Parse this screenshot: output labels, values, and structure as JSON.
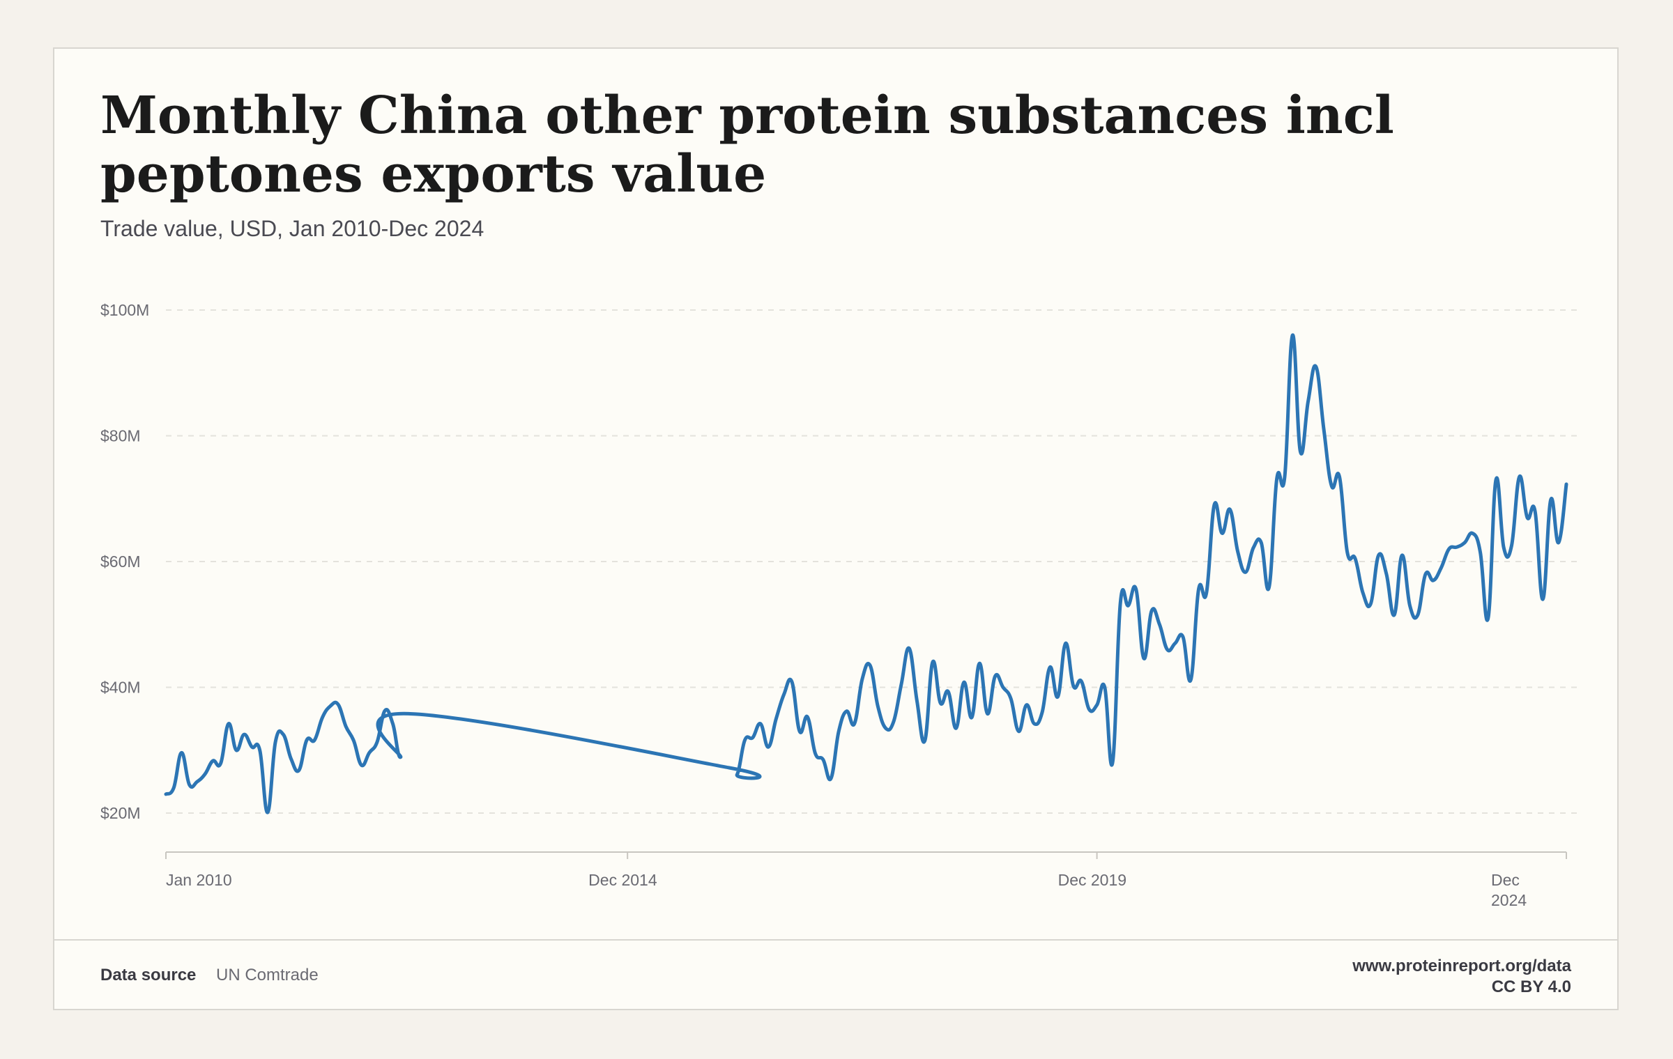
{
  "title": "Monthly China other protein substances incl peptones exports value",
  "subtitle": "Trade value, USD, Jan 2010-Dec 2024",
  "footer": {
    "source_label": "Data source",
    "source_value": "UN Comtrade",
    "url": "www.proteinreport.org/data",
    "license": "CC BY 4.0"
  },
  "colors": {
    "line": "#2c75b4",
    "grid": "#e4e2dc",
    "axis": "#c8c6c0"
  },
  "chart_data": {
    "type": "line",
    "title": "Monthly China other protein substances incl peptones exports value",
    "subtitle": "Trade value, USD, Jan 2010-Dec 2024",
    "xlabel": "",
    "ylabel": "",
    "units": "USD millions",
    "y_ticks": [
      {
        "value": 20,
        "label": "$20M"
      },
      {
        "value": 40,
        "label": "$40M"
      },
      {
        "value": 60,
        "label": "$60M"
      },
      {
        "value": 80,
        "label": "$80M"
      },
      {
        "value": 100,
        "label": "$100M"
      }
    ],
    "ylim": [
      14,
      100
    ],
    "x_ticks": [
      {
        "date": "2010-01",
        "label": "Jan 2010"
      },
      {
        "date": "2014-12",
        "label": "Dec 2014"
      },
      {
        "date": "2019-12",
        "label": "Dec 2019"
      },
      {
        "date": "2024-12",
        "label": "Dec 2024"
      }
    ],
    "xlim": [
      "2010-01",
      "2024-12"
    ],
    "grid": true,
    "legend": "none",
    "series": [
      {
        "points": [
          [
            "2010-01",
            23.0
          ],
          [
            "2010-02",
            24.0
          ],
          [
            "2010-03",
            29.6
          ],
          [
            "2010-04",
            24.5
          ],
          [
            "2010-05",
            25.0
          ],
          [
            "2010-06",
            26.2
          ],
          [
            "2010-07",
            28.3
          ],
          [
            "2010-08",
            27.9
          ],
          [
            "2010-09",
            34.2
          ],
          [
            "2010-10",
            30.0
          ],
          [
            "2010-11",
            32.5
          ],
          [
            "2010-12",
            30.5
          ],
          [
            "2011-01",
            30.0
          ],
          [
            "2011-02",
            20.1
          ],
          [
            "2011-03",
            31.3
          ],
          [
            "2011-04",
            32.5
          ],
          [
            "2011-05",
            28.6
          ],
          [
            "2011-06",
            26.8
          ],
          [
            "2011-07",
            31.6
          ],
          [
            "2011-08",
            31.6
          ],
          [
            "2011-09",
            35.2
          ],
          [
            "2011-10",
            37.0
          ],
          [
            "2011-11",
            37.3
          ],
          [
            "2011-12",
            33.8
          ],
          [
            "2012-01",
            31.5
          ],
          [
            "2012-02",
            27.6
          ],
          [
            "2012-03",
            29.6
          ],
          [
            "2012-04",
            31.3
          ],
          [
            "2012-05",
            36.3
          ],
          [
            "2012-06",
            34.2
          ],
          [
            "2012-07",
            28.9
          ],
          [
            "2012-08",
            35.8
          ],
          [
            "2016-01",
            27.2
          ],
          [
            "2016-02",
            26.1
          ],
          [
            "2016-03",
            31.6
          ],
          [
            "2016-04",
            32.0
          ],
          [
            "2016-05",
            34.2
          ],
          [
            "2016-06",
            30.5
          ],
          [
            "2016-07",
            35.0
          ],
          [
            "2016-08",
            38.9
          ],
          [
            "2016-09",
            40.9
          ],
          [
            "2016-10",
            33.0
          ],
          [
            "2016-11",
            35.3
          ],
          [
            "2016-12",
            29.5
          ],
          [
            "2017-01",
            28.5
          ],
          [
            "2017-02",
            25.5
          ],
          [
            "2017-03",
            33.0
          ],
          [
            "2017-04",
            36.2
          ],
          [
            "2017-05",
            34.2
          ],
          [
            "2017-06",
            41.3
          ],
          [
            "2017-07",
            43.5
          ],
          [
            "2017-08",
            37.0
          ],
          [
            "2017-09",
            33.5
          ],
          [
            "2017-10",
            34.5
          ],
          [
            "2017-11",
            40.5
          ],
          [
            "2017-12",
            46.2
          ],
          [
            "2018-01",
            37.8
          ],
          [
            "2018-02",
            31.5
          ],
          [
            "2018-03",
            44.0
          ],
          [
            "2018-04",
            37.5
          ],
          [
            "2018-05",
            39.3
          ],
          [
            "2018-06",
            33.5
          ],
          [
            "2018-07",
            40.8
          ],
          [
            "2018-08",
            35.2
          ],
          [
            "2018-09",
            43.8
          ],
          [
            "2018-10",
            35.8
          ],
          [
            "2018-11",
            41.8
          ],
          [
            "2018-12",
            40.0
          ],
          [
            "2019-01",
            38.2
          ],
          [
            "2019-02",
            33.0
          ],
          [
            "2019-03",
            37.2
          ],
          [
            "2019-04",
            34.2
          ],
          [
            "2019-05",
            36.0
          ],
          [
            "2019-06",
            43.2
          ],
          [
            "2019-07",
            38.5
          ],
          [
            "2019-08",
            47.0
          ],
          [
            "2019-09",
            40.2
          ],
          [
            "2019-10",
            41.0
          ],
          [
            "2019-11",
            36.5
          ],
          [
            "2019-12",
            37.2
          ],
          [
            "2020-01",
            40.0
          ],
          [
            "2020-02",
            28.0
          ],
          [
            "2020-03",
            53.5
          ],
          [
            "2020-04",
            53.0
          ],
          [
            "2020-05",
            55.6
          ],
          [
            "2020-06",
            44.6
          ],
          [
            "2020-07",
            52.2
          ],
          [
            "2020-08",
            50.0
          ],
          [
            "2020-09",
            46.0
          ],
          [
            "2020-10",
            47.0
          ],
          [
            "2020-11",
            48.0
          ],
          [
            "2020-12",
            41.2
          ],
          [
            "2021-01",
            55.6
          ],
          [
            "2021-02",
            55.0
          ],
          [
            "2021-03",
            69.0
          ],
          [
            "2021-04",
            64.5
          ],
          [
            "2021-05",
            68.3
          ],
          [
            "2021-06",
            61.6
          ],
          [
            "2021-07",
            58.3
          ],
          [
            "2021-08",
            62.2
          ],
          [
            "2021-09",
            63.0
          ],
          [
            "2021-10",
            55.9
          ],
          [
            "2021-11",
            73.2
          ],
          [
            "2021-12",
            73.5
          ],
          [
            "2022-01",
            96.0
          ],
          [
            "2022-02",
            77.5
          ],
          [
            "2022-03",
            85.5
          ],
          [
            "2022-04",
            91.0
          ],
          [
            "2022-05",
            81.0
          ],
          [
            "2022-06",
            72.0
          ],
          [
            "2022-07",
            73.5
          ],
          [
            "2022-08",
            61.5
          ],
          [
            "2022-09",
            60.5
          ],
          [
            "2022-10",
            55.0
          ],
          [
            "2022-11",
            53.3
          ],
          [
            "2022-12",
            61.0
          ],
          [
            "2023-01",
            58.0
          ],
          [
            "2023-02",
            51.5
          ],
          [
            "2023-03",
            61.0
          ],
          [
            "2023-04",
            53.0
          ],
          [
            "2023-05",
            51.5
          ],
          [
            "2023-06",
            58.0
          ],
          [
            "2023-07",
            57.0
          ],
          [
            "2023-08",
            59.0
          ],
          [
            "2023-09",
            62.0
          ],
          [
            "2023-10",
            62.3
          ],
          [
            "2023-11",
            63.0
          ],
          [
            "2023-12",
            64.5
          ],
          [
            "2024-01",
            61.5
          ],
          [
            "2024-02",
            51.0
          ],
          [
            "2024-03",
            73.0
          ],
          [
            "2024-04",
            62.2
          ],
          [
            "2024-05",
            62.5
          ],
          [
            "2024-06",
            73.5
          ],
          [
            "2024-07",
            67.0
          ],
          [
            "2024-08",
            68.0
          ],
          [
            "2024-09",
            54.0
          ],
          [
            "2024-10",
            69.8
          ],
          [
            "2024-11",
            63.0
          ],
          [
            "2024-12",
            72.3
          ]
        ]
      }
    ]
  }
}
